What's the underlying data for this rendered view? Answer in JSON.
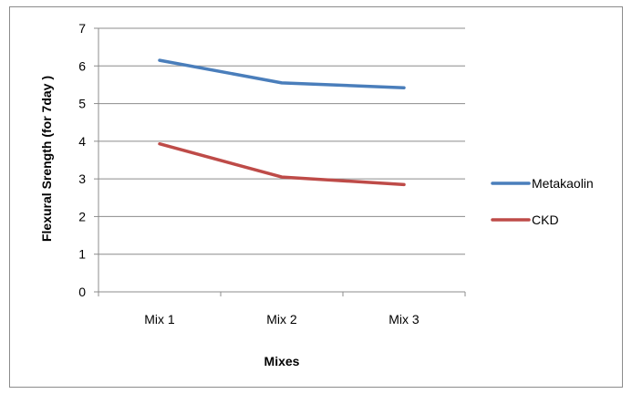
{
  "chart_data": {
    "type": "line",
    "title": "",
    "xlabel": "Mixes",
    "ylabel": "Flexural Srength (for 7day )",
    "categories": [
      "Mix 1",
      "Mix 2",
      "Mix 3"
    ],
    "ylim": [
      0,
      7
    ],
    "yticks": [
      "0",
      "1",
      "2",
      "3",
      "4",
      "5",
      "6",
      "7"
    ],
    "grid": true,
    "legend_position": "right",
    "series": [
      {
        "name": "Metakaolin",
        "color": "#4a7ebb",
        "values": [
          6.15,
          5.55,
          5.42
        ]
      },
      {
        "name": "CKD",
        "color": "#be4b48",
        "values": [
          3.93,
          3.05,
          2.85
        ]
      }
    ]
  }
}
